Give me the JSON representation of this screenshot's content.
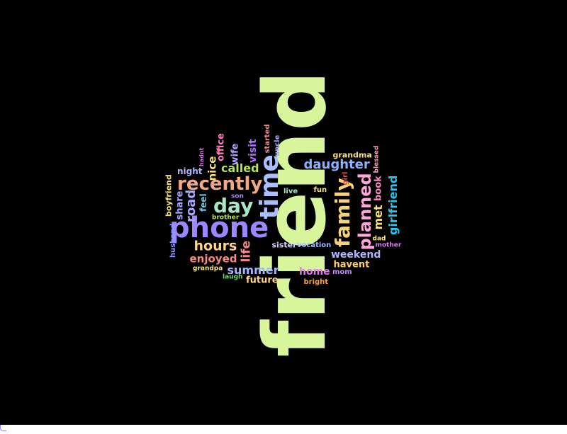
{
  "word_cloud": {
    "background": "#000000",
    "words": [
      {
        "text": "friend",
        "color": "#d8f59c"
      },
      {
        "text": "phone",
        "color": "#9d86ff"
      },
      {
        "text": "time",
        "color": "#a9bfff"
      },
      {
        "text": "recently",
        "color": "#f4a882"
      },
      {
        "text": "day",
        "color": "#a8e6c8"
      },
      {
        "text": "family",
        "color": "#f6d37b"
      },
      {
        "text": "planned",
        "color": "#ffa6df"
      },
      {
        "text": "daughter",
        "color": "#8bb0ff"
      },
      {
        "text": "called",
        "color": "#b7e34f"
      },
      {
        "text": "hours",
        "color": "#ffd38a"
      },
      {
        "text": "summer",
        "color": "#a6b4ff"
      },
      {
        "text": "enjoyed",
        "color": "#f38a86"
      },
      {
        "text": "girlfriend",
        "color": "#27c6f0"
      },
      {
        "text": "weekend",
        "color": "#b3b5ff"
      },
      {
        "text": "home",
        "color": "#e07cf2"
      },
      {
        "text": "road",
        "color": "#a9a4ff"
      },
      {
        "text": "met",
        "color": "#f9e27d"
      },
      {
        "text": "life",
        "color": "#f38a86"
      },
      {
        "text": "havent",
        "color": "#ffcf66"
      },
      {
        "text": "nice",
        "color": "#f7df72"
      },
      {
        "text": "visit",
        "color": "#b070ff"
      },
      {
        "text": "future",
        "color": "#ffd38a"
      },
      {
        "text": "night",
        "color": "#a9b7ff"
      },
      {
        "text": "share",
        "color": "#a9a4ff"
      },
      {
        "text": "office",
        "color": "#ff7fc2"
      },
      {
        "text": "wife",
        "color": "#b4a6ff"
      },
      {
        "text": "book",
        "color": "#f58bc3"
      },
      {
        "text": "feel",
        "color": "#6ec7e0"
      },
      {
        "text": "boyfriend",
        "color": "#f2e07a"
      },
      {
        "text": "husband",
        "color": "#8e99ff"
      },
      {
        "text": "sister",
        "color": "#d5d1ff"
      },
      {
        "text": "vocation",
        "color": "#a4b7ff"
      },
      {
        "text": "grandma",
        "color": "#f9e27d"
      },
      {
        "text": "live",
        "color": "#a8e6c8"
      },
      {
        "text": "fun",
        "color": "#f9e27d"
      },
      {
        "text": "girl",
        "color": "#e44a4a"
      },
      {
        "text": "son",
        "color": "#a984f0"
      },
      {
        "text": "brother",
        "color": "#b7e34f"
      },
      {
        "text": "grandpa",
        "color": "#f9e27d"
      },
      {
        "text": "laugh",
        "color": "#6bd86b"
      },
      {
        "text": "mom",
        "color": "#c08cf0"
      },
      {
        "text": "bright",
        "color": "#f2a24a"
      },
      {
        "text": "dad",
        "color": "#ffe680"
      },
      {
        "text": "mother",
        "color": "#e07cf2"
      },
      {
        "text": "blessed",
        "color": "#f7a1c4"
      },
      {
        "text": "started",
        "color": "#f38a86"
      },
      {
        "text": "uncle",
        "color": "#a9a4ff"
      },
      {
        "text": "hadnt",
        "color": "#d06ee0"
      }
    ]
  }
}
